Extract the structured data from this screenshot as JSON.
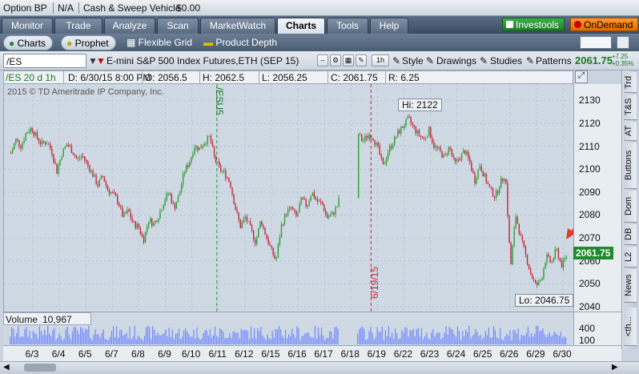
{
  "account": {
    "name": "Option BP",
    "na": "N/A",
    "vehicle_label": "Cash & Sweep Vehicle",
    "vehicle_value": "$0.00"
  },
  "tabs": [
    "Monitor",
    "Trade",
    "Analyze",
    "Scan",
    "MarketWatch",
    "Charts",
    "Tools",
    "Help"
  ],
  "active_tab": "Charts",
  "header_buttons": {
    "investools": "Investools",
    "ondemand": "OnDemand"
  },
  "subtabs": [
    "Charts",
    "Prophet",
    "Flexible Grid",
    "Product Depth"
  ],
  "toolbar": {
    "symbol": "/ES",
    "description": "E-mini S&P 500 Index Futures,ETH (SEP 15)",
    "aggregation": "1h",
    "style": "Style",
    "drawings": "Drawings",
    "studies": "Studies",
    "patterns": "Patterns",
    "last": "2061.75",
    "change": "+7.25",
    "change_pct": "+0.35%"
  },
  "chart_header": {
    "spec": "/ES 20 d 1h",
    "datetime": "D: 6/30/15 8:00 PM",
    "open": "O: 2056.5",
    "high": "H: 2062.5",
    "low": "L: 2056.25",
    "close": "C: 2061.75",
    "range": "R: 6.25",
    "copyright": "2015 © TD Ameritrade IP Company, Inc."
  },
  "annotations": {
    "hi": "Hi: 2122",
    "lo": "Lo: 2046.75",
    "expiry": "/ESU5",
    "marker": "6/19/15",
    "price_tag": "2061.75"
  },
  "volume": {
    "label": "Volume",
    "value": "10,967",
    "ticks": [
      "400",
      "100"
    ]
  },
  "right_tabs": [
    "Trd",
    "T&S",
    "AT",
    "Buttons",
    "Dom",
    "DB",
    "L2",
    "News",
    "<th..."
  ],
  "colors": {
    "up": "#2e9e36",
    "down": "#c2283a",
    "accent": "#1a7a25"
  },
  "chart_data": {
    "type": "candlestick",
    "ylim": [
      2040,
      2135
    ],
    "yticks": [
      2040,
      2050,
      2060,
      2070,
      2080,
      2090,
      2100,
      2110,
      2120,
      2130
    ],
    "xticks": [
      "6/3",
      "6/4",
      "6/5",
      "6/7",
      "6/8",
      "6/9",
      "6/10",
      "6/11",
      "6/12",
      "6/15",
      "6/16",
      "6/17",
      "6/18",
      "6/19",
      "6/22",
      "6/23",
      "6/24",
      "6/25",
      "6/26",
      "6/29",
      "6/30"
    ],
    "path": [
      2107,
      2113,
      2110,
      2116,
      2118,
      2114,
      2111,
      2112,
      2108,
      2099,
      2107,
      2111,
      2108,
      2104,
      2106,
      2102,
      2098,
      2093,
      2097,
      2091,
      2089,
      2086,
      2079,
      2082,
      2076,
      2075,
      2069,
      2078,
      2076,
      2080,
      2086,
      2090,
      2083,
      2089,
      2099,
      2103,
      2110,
      2109,
      2112,
      2114,
      2104,
      2100,
      2098,
      2094,
      2083,
      2075,
      2079,
      2074,
      2068,
      2078,
      2071,
      2065,
      2060,
      2075,
      2081,
      2083,
      2079,
      2087,
      2084,
      2090,
      2086,
      2085,
      2079,
      2080,
      2084,
      2092,
      2105,
      2112,
      2116,
      2112,
      2115,
      2114,
      2109,
      2101,
      2108,
      2112,
      2116,
      2119,
      2122,
      2118,
      2115,
      2113,
      2117,
      2110,
      2108,
      2105,
      2110,
      2102,
      2105,
      2108,
      2103,
      2095,
      2102,
      2096,
      2091,
      2088,
      2094,
      2098,
      2057,
      2080,
      2070,
      2062,
      2054,
      2049,
      2052,
      2062,
      2059,
      2065,
      2058,
      2062
    ]
  }
}
